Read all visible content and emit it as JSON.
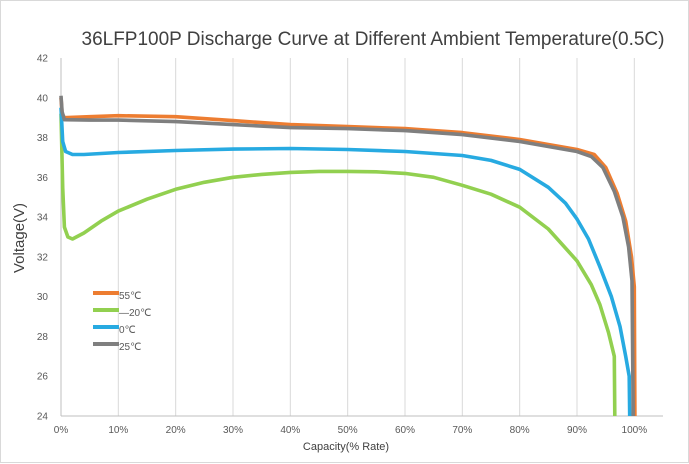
{
  "chart_data": {
    "type": "line",
    "title": "36LFP100P Discharge Curve at Different Ambient Temperature(0.5C)",
    "xlabel": "Capacity(% Rate)",
    "ylabel": "Voltage(V)",
    "xlim": [
      0,
      105
    ],
    "ylim": [
      24,
      42
    ],
    "xticks": [
      0,
      10,
      20,
      30,
      40,
      50,
      60,
      70,
      80,
      90,
      100
    ],
    "xtick_labels": [
      "0%",
      "10%",
      "20%",
      "30%",
      "40%",
      "50%",
      "60%",
      "70%",
      "80%",
      "90%",
      "100%"
    ],
    "yticks": [
      24,
      26,
      28,
      30,
      32,
      34,
      36,
      38,
      40,
      42
    ],
    "ytick_labels": [
      "24",
      "26",
      "28",
      "30",
      "32",
      "34",
      "36",
      "38",
      "40",
      "42"
    ],
    "grid": "vertical",
    "legend_position": "left-middle",
    "series": [
      {
        "name": "55℃",
        "color": "#ED7D31",
        "points": [
          [
            0,
            40.0
          ],
          [
            0.2,
            39.2
          ],
          [
            0.6,
            39.0
          ],
          [
            5,
            39.05
          ],
          [
            10,
            39.1
          ],
          [
            20,
            39.05
          ],
          [
            30,
            38.85
          ],
          [
            40,
            38.65
          ],
          [
            50,
            38.55
          ],
          [
            60,
            38.45
          ],
          [
            70,
            38.25
          ],
          [
            80,
            37.9
          ],
          [
            85,
            37.65
          ],
          [
            90,
            37.4
          ],
          [
            93,
            37.15
          ],
          [
            95,
            36.5
          ],
          [
            97,
            35.2
          ],
          [
            98.5,
            33.8
          ],
          [
            99.5,
            32.0
          ],
          [
            100,
            30.5
          ],
          [
            100.1,
            24.0
          ]
        ]
      },
      {
        "name": "—20℃",
        "color": "#92D050",
        "points": [
          [
            0,
            39.2
          ],
          [
            0.3,
            35.5
          ],
          [
            0.6,
            33.5
          ],
          [
            1.2,
            33.0
          ],
          [
            2,
            32.9
          ],
          [
            4,
            33.2
          ],
          [
            7,
            33.8
          ],
          [
            10,
            34.3
          ],
          [
            15,
            34.9
          ],
          [
            20,
            35.4
          ],
          [
            25,
            35.75
          ],
          [
            30,
            36.0
          ],
          [
            35,
            36.15
          ],
          [
            40,
            36.25
          ],
          [
            45,
            36.3
          ],
          [
            50,
            36.3
          ],
          [
            55,
            36.28
          ],
          [
            60,
            36.2
          ],
          [
            65,
            36.0
          ],
          [
            70,
            35.6
          ],
          [
            75,
            35.15
          ],
          [
            80,
            34.5
          ],
          [
            85,
            33.4
          ],
          [
            90,
            31.8
          ],
          [
            92.5,
            30.6
          ],
          [
            94,
            29.6
          ],
          [
            95.5,
            28.2
          ],
          [
            96.5,
            27.0
          ],
          [
            96.6,
            24.0
          ]
        ]
      },
      {
        "name": "0℃",
        "color": "#27AAE1",
        "points": [
          [
            0,
            39.5
          ],
          [
            0.3,
            37.8
          ],
          [
            0.8,
            37.3
          ],
          [
            2,
            37.15
          ],
          [
            4,
            37.15
          ],
          [
            10,
            37.25
          ],
          [
            20,
            37.35
          ],
          [
            30,
            37.42
          ],
          [
            40,
            37.45
          ],
          [
            50,
            37.4
          ],
          [
            60,
            37.3
          ],
          [
            70,
            37.1
          ],
          [
            75,
            36.85
          ],
          [
            80,
            36.4
          ],
          [
            85,
            35.5
          ],
          [
            88,
            34.7
          ],
          [
            90,
            33.9
          ],
          [
            92,
            32.9
          ],
          [
            94,
            31.5
          ],
          [
            96,
            30.0
          ],
          [
            97.5,
            28.5
          ],
          [
            98.5,
            27.0
          ],
          [
            99.1,
            26.0
          ],
          [
            99.2,
            24.0
          ]
        ]
      },
      {
        "name": "25℃",
        "color": "#7F7F7F",
        "points": [
          [
            0,
            40.1
          ],
          [
            0.2,
            39.3
          ],
          [
            0.6,
            38.9
          ],
          [
            5,
            38.88
          ],
          [
            10,
            38.88
          ],
          [
            20,
            38.8
          ],
          [
            30,
            38.65
          ],
          [
            40,
            38.5
          ],
          [
            50,
            38.45
          ],
          [
            60,
            38.35
          ],
          [
            70,
            38.15
          ],
          [
            80,
            37.8
          ],
          [
            85,
            37.55
          ],
          [
            90,
            37.3
          ],
          [
            92.5,
            37.05
          ],
          [
            94.5,
            36.5
          ],
          [
            96.5,
            35.3
          ],
          [
            98,
            34.0
          ],
          [
            99,
            32.5
          ],
          [
            99.6,
            30.8
          ],
          [
            99.8,
            24.0
          ]
        ]
      }
    ]
  }
}
